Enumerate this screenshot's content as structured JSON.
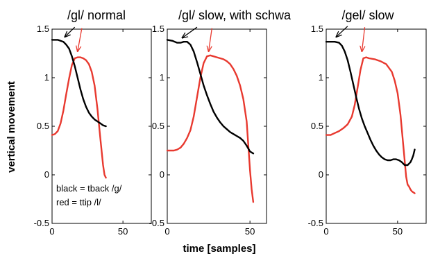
{
  "figure": {
    "ylabel": "vertical movement",
    "xlabel": "time [samples]"
  },
  "colors": {
    "tback": "#000000",
    "ttip": "#e8392f"
  },
  "chart_data": [
    {
      "type": "line",
      "title": "/gl/ normal",
      "xlim": [
        0,
        70
      ],
      "ylim": [
        -0.5,
        1.5
      ],
      "xticks": [
        0,
        50
      ],
      "yticks": [
        -0.5,
        0,
        0.5,
        1,
        1.5
      ],
      "annotation_lines": [
        "black = tback /g/",
        "red = ttip /l/"
      ],
      "series": [
        {
          "key": "tback",
          "color": "#000000",
          "x": [
            0,
            4,
            8,
            10,
            12,
            14,
            16,
            18,
            20,
            22,
            24,
            26,
            28,
            30,
            32,
            34,
            36,
            38
          ],
          "y": [
            1.39,
            1.39,
            1.37,
            1.34,
            1.3,
            1.22,
            1.12,
            1.0,
            0.88,
            0.78,
            0.7,
            0.64,
            0.6,
            0.57,
            0.55,
            0.53,
            0.51,
            0.5
          ]
        },
        {
          "key": "ttip",
          "color": "#e8392f",
          "x": [
            0,
            2,
            4,
            6,
            8,
            10,
            12,
            14,
            16,
            18,
            20,
            22,
            24,
            26,
            28,
            30,
            32,
            34,
            36,
            37,
            38
          ],
          "y": [
            0.41,
            0.42,
            0.45,
            0.53,
            0.66,
            0.83,
            0.99,
            1.13,
            1.2,
            1.21,
            1.21,
            1.2,
            1.18,
            1.14,
            1.06,
            0.92,
            0.68,
            0.38,
            0.1,
            0.0,
            -0.03
          ]
        }
      ],
      "arrows": [
        {
          "color": "#000000",
          "from": [
            16,
            1.52
          ],
          "to": [
            9,
            1.42
          ]
        },
        {
          "color": "#e8392f",
          "from": [
            21,
            1.51
          ],
          "to": [
            18,
            1.27
          ]
        }
      ]
    },
    {
      "type": "line",
      "title": "/gl/ slow, with schwa",
      "xlim": [
        0,
        60
      ],
      "ylim": [
        -0.5,
        1.5
      ],
      "xticks": [
        0,
        50
      ],
      "yticks": [
        -0.5,
        0,
        0.5,
        1,
        1.5
      ],
      "series": [
        {
          "key": "tback",
          "color": "#000000",
          "x": [
            0,
            3,
            6,
            8,
            10,
            12,
            14,
            16,
            18,
            20,
            22,
            24,
            26,
            28,
            30,
            32,
            34,
            36,
            38,
            40,
            42,
            44,
            46,
            48,
            50,
            52
          ],
          "y": [
            1.39,
            1.38,
            1.36,
            1.36,
            1.37,
            1.37,
            1.34,
            1.27,
            1.16,
            1.04,
            0.92,
            0.82,
            0.73,
            0.65,
            0.59,
            0.54,
            0.5,
            0.47,
            0.44,
            0.42,
            0.4,
            0.38,
            0.35,
            0.3,
            0.24,
            0.22
          ]
        },
        {
          "key": "ttip",
          "color": "#e8392f",
          "x": [
            0,
            2,
            4,
            6,
            8,
            10,
            12,
            14,
            16,
            18,
            20,
            22,
            24,
            26,
            28,
            30,
            32,
            34,
            36,
            38,
            40,
            42,
            44,
            46,
            48,
            49,
            50,
            51,
            52
          ],
          "y": [
            0.25,
            0.25,
            0.25,
            0.26,
            0.28,
            0.32,
            0.38,
            0.46,
            0.6,
            0.8,
            1.0,
            1.15,
            1.22,
            1.23,
            1.22,
            1.21,
            1.2,
            1.19,
            1.17,
            1.14,
            1.09,
            1.02,
            0.92,
            0.78,
            0.55,
            0.3,
            0.05,
            -0.15,
            -0.28
          ]
        }
      ],
      "arrows": [
        {
          "color": "#000000",
          "from": [
            18,
            1.52
          ],
          "to": [
            9,
            1.41
          ]
        },
        {
          "color": "#e8392f",
          "from": [
            27,
            1.51
          ],
          "to": [
            25,
            1.27
          ]
        }
      ]
    },
    {
      "type": "line",
      "title": "/gel/ slow",
      "xlim": [
        0,
        70
      ],
      "ylim": [
        -0.5,
        1.5
      ],
      "xticks": [
        0,
        50
      ],
      "yticks": [
        -0.5,
        0,
        0.5,
        1,
        1.5
      ],
      "series": [
        {
          "key": "tback",
          "color": "#000000",
          "x": [
            0,
            3,
            6,
            9,
            11,
            13,
            15,
            17,
            19,
            21,
            23,
            25,
            27,
            29,
            31,
            33,
            35,
            37,
            39,
            41,
            43,
            45,
            47,
            49,
            51,
            53,
            55,
            57,
            59,
            60,
            61,
            62
          ],
          "y": [
            1.37,
            1.37,
            1.37,
            1.36,
            1.33,
            1.27,
            1.18,
            1.06,
            0.93,
            0.8,
            0.68,
            0.58,
            0.5,
            0.43,
            0.36,
            0.3,
            0.25,
            0.21,
            0.18,
            0.16,
            0.15,
            0.15,
            0.16,
            0.16,
            0.15,
            0.13,
            0.1,
            0.1,
            0.13,
            0.16,
            0.2,
            0.26
          ]
        },
        {
          "key": "ttip",
          "color": "#e8392f",
          "x": [
            0,
            3,
            6,
            9,
            12,
            15,
            18,
            20,
            22,
            24,
            26,
            28,
            30,
            34,
            38,
            42,
            46,
            48,
            50,
            52,
            54,
            56,
            57,
            58,
            59,
            60,
            61,
            62
          ],
          "y": [
            0.41,
            0.41,
            0.43,
            0.45,
            0.48,
            0.52,
            0.6,
            0.72,
            0.9,
            1.08,
            1.2,
            1.21,
            1.2,
            1.19,
            1.17,
            1.14,
            1.06,
            0.97,
            0.84,
            0.62,
            0.3,
            -0.02,
            -0.1,
            -0.12,
            -0.15,
            -0.17,
            -0.18,
            -0.19
          ]
        }
      ],
      "arrows": [
        {
          "color": "#000000",
          "from": [
            15,
            1.53
          ],
          "to": [
            7,
            1.42
          ]
        },
        {
          "color": "#e8392f",
          "from": [
            27,
            1.52
          ],
          "to": [
            25,
            1.27
          ]
        }
      ]
    }
  ]
}
